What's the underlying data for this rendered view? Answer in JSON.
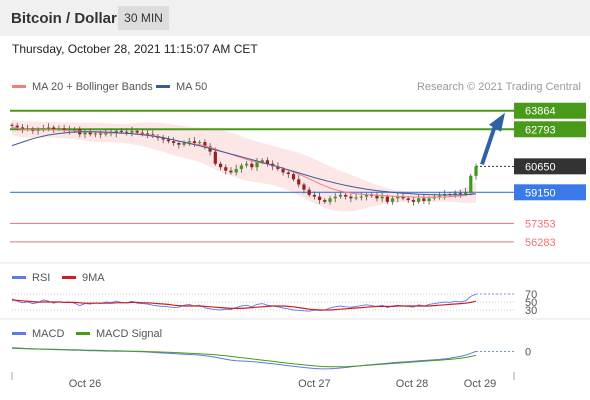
{
  "header": {
    "title": "Bitcoin / Dollar",
    "timeframe": "30 MIN"
  },
  "timestamp": "Thursday, October 28, 2021 11:15:07 AM CET",
  "credit": "Research © 2021 Trading Central",
  "colors": {
    "bollinger": "#f08080",
    "ma50": "#3a5a9a",
    "resistance": "#4a9a1a",
    "pivot": "#3a7ae8",
    "support": "#f07070",
    "last_price": "#333333",
    "arrow": "#3060a8",
    "rsi": "#5a7ae8",
    "rsi_ma": "#cc2020",
    "macd": "#5a7ae8",
    "macd_signal": "#4a9a1a"
  },
  "main_legend": [
    {
      "name": "MA 20 + Bollinger Bands",
      "color": "#f08080"
    },
    {
      "name": "MA 50",
      "color": "#3a5a9a"
    }
  ],
  "rsi_legend": [
    {
      "name": "RSI",
      "color": "#5a7ae8"
    },
    {
      "name": "9MA",
      "color": "#cc2020"
    }
  ],
  "macd_legend": [
    {
      "name": "MACD",
      "color": "#5a7ae8"
    },
    {
      "name": "MACD Signal",
      "color": "#4a9a1a"
    }
  ],
  "chart_data": [
    {
      "type": "candlestick",
      "x_labels": [
        "Oct 26",
        "Oct 27",
        "Oct 28",
        "Oct 29"
      ],
      "ylim": [
        55700,
        64600
      ],
      "levels": [
        {
          "value": 63864,
          "label": "63864",
          "kind": "resistance"
        },
        {
          "value": 62793,
          "label": "62793",
          "kind": "resistance"
        },
        {
          "value": 60650,
          "label": "60650",
          "kind": "last"
        },
        {
          "value": 59150,
          "label": "59150",
          "kind": "pivot"
        },
        {
          "value": 57353,
          "label": "57353",
          "kind": "support"
        },
        {
          "value": 56283,
          "label": "56283",
          "kind": "support"
        }
      ],
      "close": [
        63000,
        62900,
        62800,
        62820,
        62700,
        62750,
        62850,
        62900,
        62800,
        62850,
        62750,
        62700,
        62800,
        62500,
        62600,
        62500,
        62550,
        62500,
        62600,
        62550,
        62700,
        62650,
        62600,
        62700,
        62600,
        62550,
        62500,
        62400,
        62300,
        62200,
        62100,
        62000,
        61900,
        62000,
        62100,
        62000,
        62050,
        61800,
        61500,
        60800,
        60600,
        60400,
        60300,
        60500,
        60700,
        60800,
        60600,
        60900,
        61000,
        60800,
        60650,
        60500,
        60300,
        60200,
        59900,
        59600,
        59300,
        59000,
        58900,
        58700,
        58600,
        58800,
        58900,
        59000,
        58900,
        58800,
        58850,
        58900,
        59000,
        58950,
        58800,
        58900,
        58600,
        58800,
        58900,
        58800,
        58700,
        58600,
        58800,
        58650,
        58800,
        58900,
        58950,
        59050,
        59000,
        59100,
        59050,
        59150,
        60100,
        60650
      ],
      "ma20": [
        62900,
        62850,
        62800,
        62780,
        62760,
        62750,
        62760,
        62770,
        62760,
        62750,
        62740,
        62720,
        62700,
        62680,
        62660,
        62640,
        62620,
        62600,
        62590,
        62580,
        62570,
        62560,
        62550,
        62540,
        62520,
        62500,
        62470,
        62430,
        62380,
        62320,
        62250,
        62180,
        62110,
        62060,
        62000,
        61950,
        61900,
        61830,
        61750,
        61650,
        61550,
        61450,
        61350,
        61250,
        61150,
        61050,
        60970,
        60900,
        60840,
        60780,
        60700,
        60620,
        60530,
        60430,
        60320,
        60200,
        60070,
        59930,
        59790,
        59650,
        59520,
        59400,
        59300,
        59220,
        59160,
        59110,
        59070,
        59040,
        59020,
        59000,
        58980,
        58960,
        58940,
        58920,
        58910,
        58900,
        58890,
        58880,
        58870,
        58860,
        58860,
        58860,
        58870,
        58880,
        58900,
        58920,
        58940,
        58970,
        59050,
        59150
      ],
      "bb_width": [
        450,
        450,
        460,
        470,
        480,
        480,
        470,
        460,
        460,
        460,
        460,
        470,
        480,
        500,
        520,
        540,
        560,
        560,
        550,
        540,
        540,
        540,
        560,
        600,
        640,
        680,
        720,
        760,
        800,
        830,
        860,
        880,
        900,
        920,
        940,
        960,
        1000,
        1060,
        1120,
        1180,
        1220,
        1240,
        1250,
        1250,
        1240,
        1220,
        1200,
        1180,
        1160,
        1150,
        1140,
        1140,
        1150,
        1170,
        1200,
        1230,
        1250,
        1270,
        1280,
        1280,
        1270,
        1250,
        1220,
        1180,
        1120,
        1050,
        970,
        880,
        780,
        680,
        590,
        510,
        440,
        380,
        340,
        310,
        290,
        280,
        275,
        270,
        270,
        270,
        275,
        280,
        300,
        330,
        380,
        450,
        520,
        600
      ],
      "ma50": [
        61850,
        61950,
        62050,
        62150,
        62250,
        62330,
        62400,
        62460,
        62510,
        62550,
        62580,
        62610,
        62630,
        62640,
        62650,
        62650,
        62650,
        62640,
        62630,
        62620,
        62600,
        62580,
        62560,
        62540,
        62510,
        62480,
        62440,
        62400,
        62350,
        62300,
        62240,
        62180,
        62110,
        62040,
        61970,
        61900,
        61830,
        61760,
        61680,
        61600,
        61520,
        61440,
        61360,
        61280,
        61200,
        61120,
        61040,
        60960,
        60880,
        60800,
        60720,
        60630,
        60540,
        60450,
        60360,
        60270,
        60180,
        60090,
        60000,
        59920,
        59840,
        59760,
        59690,
        59620,
        59550,
        59490,
        59430,
        59380,
        59330,
        59290,
        59250,
        59210,
        59180,
        59150,
        59120,
        59100,
        59080,
        59060,
        59040,
        59030,
        59020,
        59010,
        59000,
        59000,
        59000,
        59000,
        59010,
        59020,
        59040,
        59060
      ]
    },
    {
      "type": "line",
      "name": "RSI",
      "ylim": [
        20,
        80
      ],
      "levels": [
        70,
        50,
        30
      ],
      "series": [
        {
          "name": "RSI",
          "values": [
            58,
            52,
            48,
            50,
            46,
            49,
            55,
            52,
            47,
            51,
            49,
            50,
            47,
            41,
            46,
            45,
            48,
            46,
            50,
            49,
            52,
            49,
            48,
            52,
            47,
            46,
            45,
            42,
            40,
            39,
            38,
            36,
            37,
            42,
            44,
            40,
            42,
            35,
            33,
            31,
            30,
            32,
            31,
            36,
            40,
            42,
            38,
            44,
            46,
            42,
            40,
            38,
            35,
            33,
            30,
            29,
            28,
            27,
            30,
            29,
            30,
            35,
            38,
            40,
            38,
            37,
            39,
            41,
            43,
            41,
            38,
            42,
            36,
            40,
            42,
            40,
            39,
            37,
            43,
            40,
            44,
            46,
            48,
            50,
            49,
            52,
            50,
            53,
            64,
            70
          ]
        },
        {
          "name": "9MA",
          "values": [
            55,
            54,
            53,
            52,
            51,
            50,
            50,
            50,
            50,
            50,
            49,
            49,
            49,
            48,
            47,
            47,
            47,
            47,
            47,
            47,
            48,
            48,
            48,
            49,
            49,
            48,
            48,
            47,
            46,
            45,
            44,
            42,
            41,
            40,
            40,
            40,
            40,
            39,
            38,
            37,
            36,
            35,
            34,
            34,
            34,
            35,
            36,
            37,
            38,
            39,
            40,
            40,
            40,
            39,
            38,
            36,
            34,
            32,
            31,
            30,
            30,
            30,
            31,
            32,
            33,
            34,
            35,
            36,
            37,
            38,
            39,
            39,
            39,
            39,
            40,
            40,
            40,
            40,
            40,
            40,
            40,
            41,
            42,
            43,
            44,
            45,
            46,
            47,
            49,
            52
          ]
        }
      ]
    },
    {
      "type": "line",
      "name": "MACD",
      "ylim": [
        -300,
        120
      ],
      "zero_label": "0",
      "series": [
        {
          "name": "MACD",
          "values": [
            60,
            55,
            50,
            45,
            40,
            38,
            36,
            34,
            30,
            28,
            26,
            22,
            20,
            18,
            15,
            12,
            10,
            8,
            6,
            5,
            4,
            3,
            2,
            0,
            -2,
            -5,
            -10,
            -15,
            -20,
            -25,
            -30,
            -35,
            -40,
            -45,
            -50,
            -55,
            -60,
            -70,
            -80,
            -95,
            -110,
            -125,
            -140,
            -150,
            -155,
            -160,
            -165,
            -170,
            -180,
            -190,
            -200,
            -210,
            -220,
            -230,
            -240,
            -250,
            -260,
            -268,
            -275,
            -280,
            -282,
            -280,
            -275,
            -268,
            -260,
            -250,
            -240,
            -230,
            -220,
            -212,
            -205,
            -198,
            -190,
            -183,
            -176,
            -170,
            -164,
            -158,
            -152,
            -146,
            -140,
            -134,
            -128,
            -120,
            -110,
            -95,
            -80,
            -60,
            -30,
            0
          ]
        },
        {
          "name": "MACD Signal",
          "values": [
            50,
            48,
            46,
            44,
            42,
            40,
            38,
            36,
            34,
            32,
            30,
            28,
            26,
            24,
            22,
            20,
            18,
            16,
            14,
            12,
            10,
            8,
            6,
            4,
            2,
            0,
            -2,
            -5,
            -8,
            -11,
            -14,
            -18,
            -22,
            -26,
            -30,
            -34,
            -38,
            -43,
            -48,
            -55,
            -62,
            -70,
            -80,
            -90,
            -100,
            -110,
            -120,
            -130,
            -140,
            -150,
            -160,
            -170,
            -180,
            -190,
            -200,
            -210,
            -218,
            -226,
            -234,
            -240,
            -245,
            -248,
            -249,
            -248,
            -246,
            -242,
            -237,
            -231,
            -225,
            -219,
            -213,
            -207,
            -201,
            -195,
            -189,
            -183,
            -177,
            -171,
            -165,
            -159,
            -153,
            -147,
            -141,
            -135,
            -128,
            -120,
            -110,
            -98,
            -82,
            -62
          ]
        }
      ]
    }
  ]
}
